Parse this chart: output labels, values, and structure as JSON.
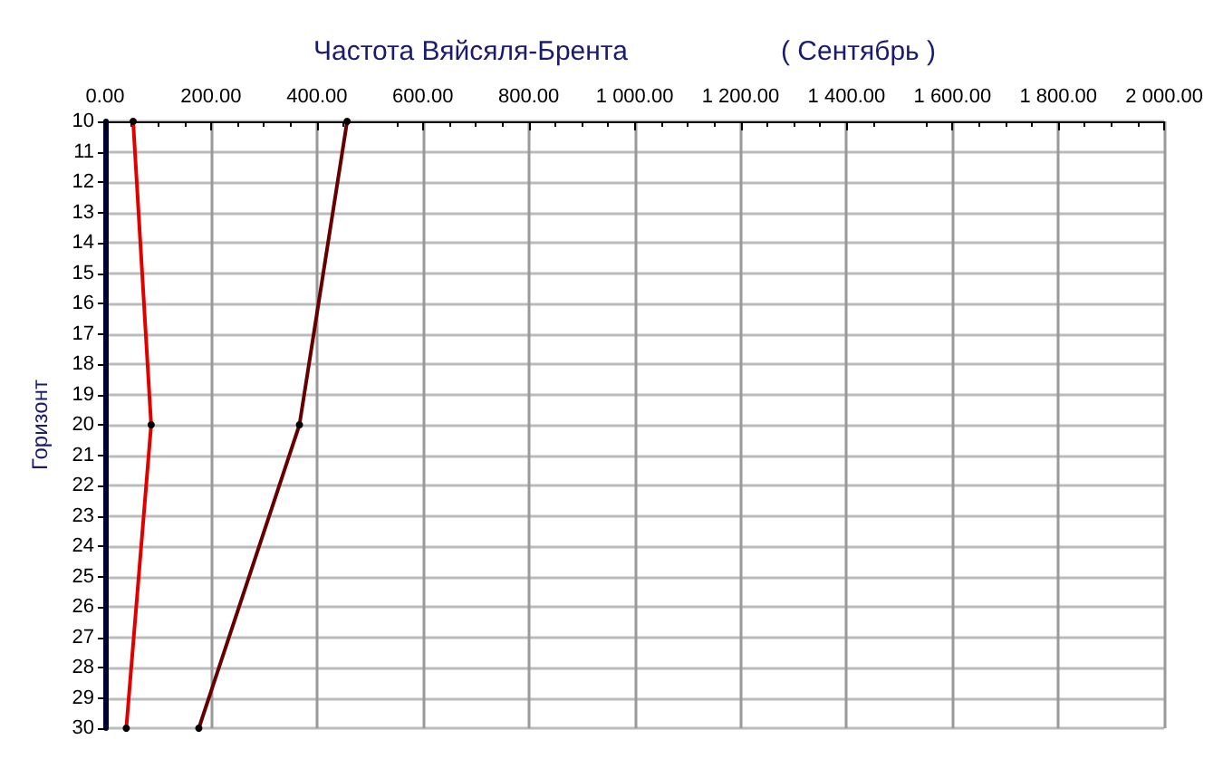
{
  "chart_data": {
    "type": "line",
    "title": "Частота Вяйсяля-Брента",
    "subtitle": "( Сентябрь )",
    "ylabel": "Горизонт",
    "series": [
      {
        "color": "#e00000",
        "x": [
          53,
          87,
          40
        ],
        "values": [
          10,
          20,
          30
        ]
      },
      {
        "color": "#660000",
        "x": [
          457,
          367,
          177
        ],
        "values": [
          10,
          20,
          30
        ]
      }
    ],
    "xlim": [
      0,
      2000
    ],
    "xticks": [
      {
        "value": 0,
        "label": "0.00"
      },
      {
        "value": 200,
        "label": "200.00"
      },
      {
        "value": 400,
        "label": "400.00"
      },
      {
        "value": 600,
        "label": "600.00"
      },
      {
        "value": 800,
        "label": "800.00"
      },
      {
        "value": 1000,
        "label": "1 000.00"
      },
      {
        "value": 1200,
        "label": "1 200.00"
      },
      {
        "value": 1400,
        "label": "1 400.00"
      },
      {
        "value": 1600,
        "label": "1 600.00"
      },
      {
        "value": 1800,
        "label": "1 800.00"
      },
      {
        "value": 2000,
        "label": "2 000.00"
      }
    ],
    "ylim": [
      30,
      10
    ],
    "yticks": [
      10,
      11,
      12,
      13,
      14,
      15,
      16,
      17,
      18,
      19,
      20,
      21,
      22,
      23,
      24,
      25,
      26,
      27,
      28,
      29,
      30
    ],
    "grid": true,
    "marker": "circle",
    "line_style": "solid"
  }
}
